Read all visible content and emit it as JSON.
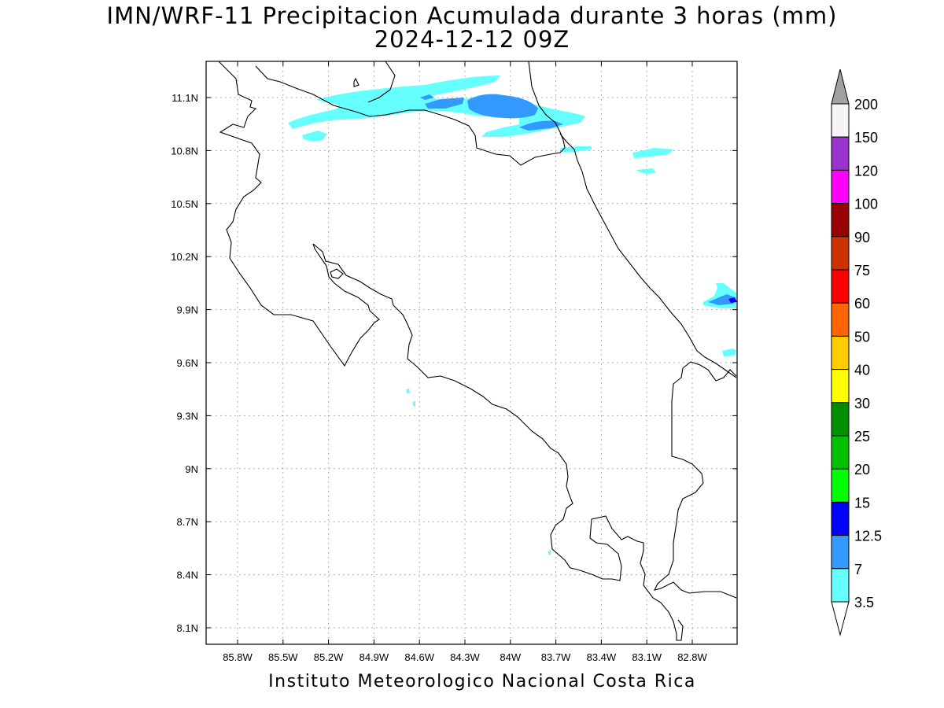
{
  "title": {
    "line1": "IMN/WRF-11 Precipitacion Acumulada durante 3 horas (mm)",
    "line2": "2024-12-12 09Z"
  },
  "credit": "Instituto Meteorologico Nacional Costa Rica",
  "map": {
    "lon_labels": [
      "85.8W",
      "85.5W",
      "85.2W",
      "84.9W",
      "84.6W",
      "84.3W",
      "84W",
      "83.7W",
      "83.4W",
      "83.1W",
      "82.8W"
    ],
    "lat_labels": [
      "11.1N",
      "10.8N",
      "10.5N",
      "10.2N",
      "9.9N",
      "9.6N",
      "9.3N",
      "9N",
      "8.7N",
      "8.4N",
      "8.1N"
    ],
    "grid": true
  },
  "colorbar": {
    "labels": [
      "200",
      "150",
      "120",
      "100",
      "90",
      "75",
      "60",
      "50",
      "40",
      "30",
      "25",
      "20",
      "15",
      "12.5",
      "7",
      "3.5"
    ],
    "colors": [
      "#f5f5f5",
      "#9933cc",
      "#ff00ff",
      "#990000",
      "#cc3300",
      "#ff0000",
      "#ff6600",
      "#ffcc00",
      "#ffff00",
      "#008f00",
      "#00c000",
      "#00ff00",
      "#0000ff",
      "#3399ff",
      "#66ffff"
    ],
    "top_arrow_color": "#a0a0a0",
    "bottom_arrow_color": "#ffffff"
  },
  "precip_colors": {
    "3.5": "#66ffff",
    "7": "#3399ff",
    "12.5": "#0000ff"
  }
}
